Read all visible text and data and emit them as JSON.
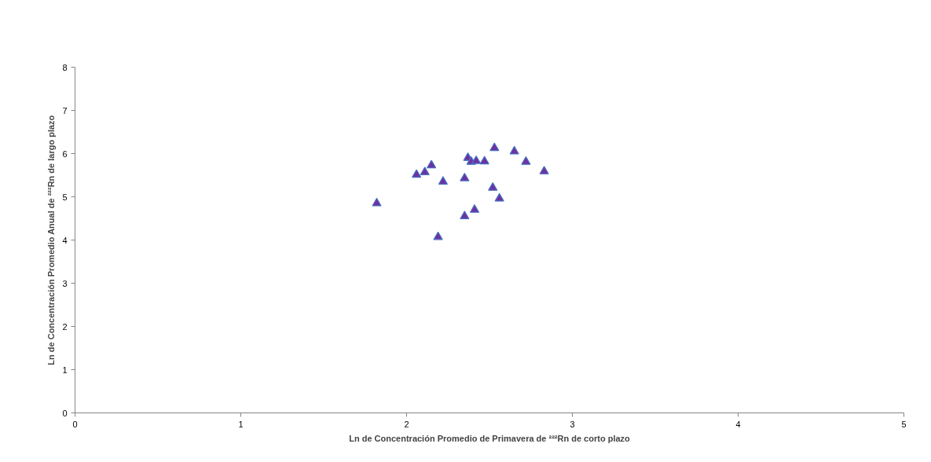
{
  "chart_data": {
    "type": "scatter",
    "xlabel": "Ln de Concentración Promedio de Primavera de ²²²Rn de corto plazo",
    "ylabel": "Ln de Concentración Promedio Anual de ²²²Rn de largo plazo",
    "x": [
      1.82,
      2.06,
      2.11,
      2.15,
      2.22,
      2.35,
      2.37,
      2.39,
      2.42,
      2.47,
      2.53,
      2.65,
      2.72,
      2.83,
      2.52,
      2.56,
      2.41,
      2.35,
      2.19
    ],
    "series": [
      {
        "color": "#7030a0",
        "values": [
          4.85,
          5.51,
          5.57,
          5.73,
          5.35,
          5.43,
          5.9,
          5.81,
          5.83,
          5.82,
          6.13,
          6.05,
          5.81,
          5.59,
          5.21,
          4.96,
          4.7,
          4.55,
          4.07
        ]
      }
    ],
    "marker": "triangle",
    "xlim": [
      0,
      5
    ],
    "ylim": [
      0,
      8
    ],
    "xticks": [
      0,
      1,
      2,
      3,
      4,
      5
    ],
    "yticks": [
      0,
      1,
      2,
      3,
      4,
      5,
      6,
      7,
      8
    ],
    "grid": false
  }
}
